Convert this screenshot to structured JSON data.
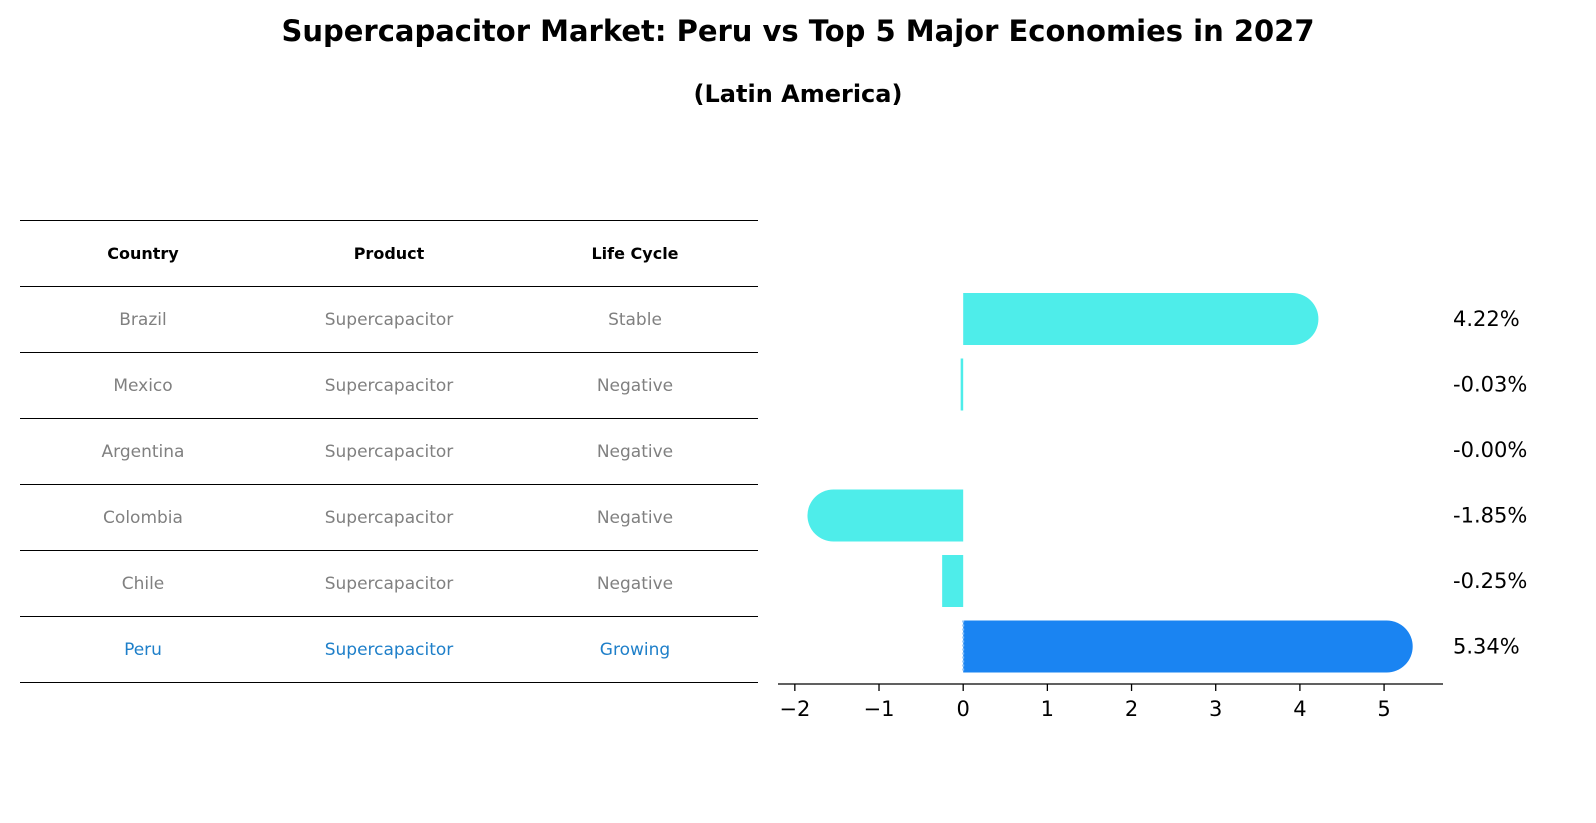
{
  "header": {
    "title": "Supercapacitor Market: Peru vs Top 5 Major Economies in 2027",
    "subtitle": "(Latin America)"
  },
  "table": {
    "columns": [
      "Country",
      "Product",
      "Life Cycle"
    ],
    "rows": [
      {
        "country": "Brazil",
        "product": "Supercapacitor",
        "life_cycle": "Stable"
      },
      {
        "country": "Mexico",
        "product": "Supercapacitor",
        "life_cycle": "Negative"
      },
      {
        "country": "Argentina",
        "product": "Supercapacitor",
        "life_cycle": "Negative"
      },
      {
        "country": "Colombia",
        "product": "Supercapacitor",
        "life_cycle": "Negative"
      },
      {
        "country": "Chile",
        "product": "Supercapacitor",
        "life_cycle": "Negative"
      },
      {
        "country": "Peru",
        "product": "Supercapacitor",
        "life_cycle": "Growing"
      }
    ]
  },
  "colors": {
    "bar": "#4eedea",
    "highlight": "#1a84f2",
    "highlight_text": "#1e7fc9",
    "muted_text": "#808080"
  },
  "chart_data": {
    "type": "bar",
    "orientation": "horizontal",
    "categories": [
      "Brazil",
      "Mexico",
      "Argentina",
      "Colombia",
      "Chile",
      "Peru"
    ],
    "values": [
      4.22,
      -0.03,
      -0.0,
      -1.85,
      -0.25,
      5.34
    ],
    "value_labels": [
      "4.22%",
      "-0.03%",
      "-0.00%",
      "-1.85%",
      "-0.25%",
      "5.34%"
    ],
    "highlight_category": "Peru",
    "xlim": [
      -2.2,
      5.7
    ],
    "xticks": [
      -2,
      -1,
      0,
      1,
      2,
      3,
      4,
      5
    ],
    "xtick_labels": [
      "−2",
      "−1",
      "0",
      "1",
      "2",
      "3",
      "4",
      "5"
    ],
    "title": "Supercapacitor Market: Peru vs Top 5 Major Economies in 2027",
    "xlabel": "",
    "ylabel": "",
    "grid": false
  }
}
